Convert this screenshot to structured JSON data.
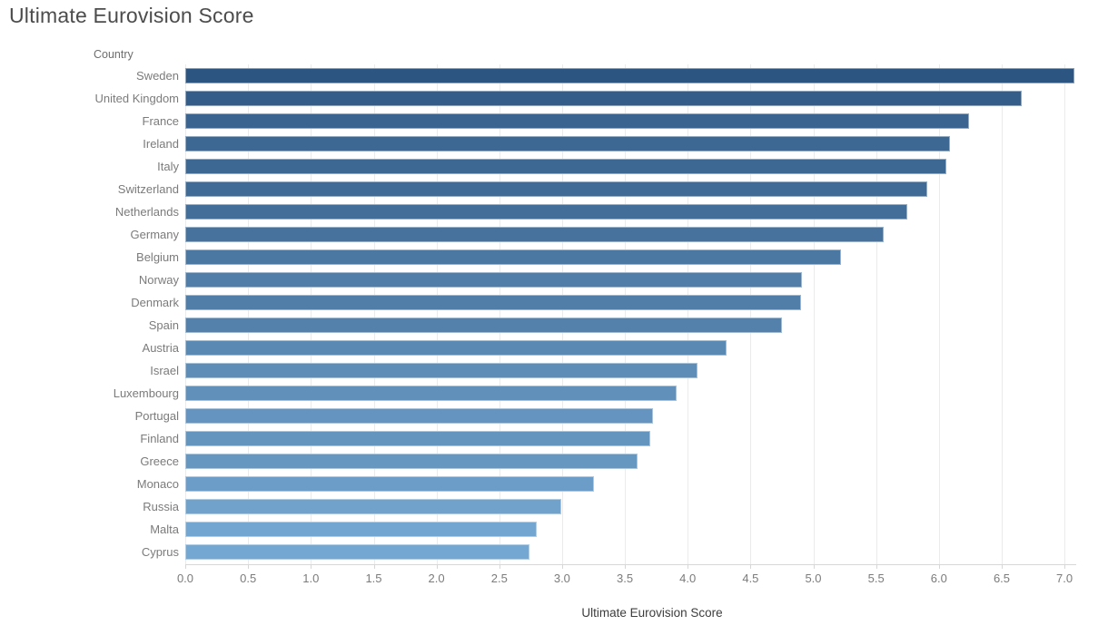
{
  "title": "Ultimate Eurovision Score",
  "row_header": "Country",
  "chart_data": {
    "type": "bar",
    "orientation": "horizontal",
    "title": "Ultimate Eurovision Score",
    "xlabel": "Ultimate Eurovision Score",
    "ylabel": "Country",
    "xlim": [
      0,
      7.0
    ],
    "tick_step": 0.5,
    "x_ticks": [
      "0.0",
      "0.5",
      "1.0",
      "1.5",
      "2.0",
      "2.5",
      "3.0",
      "3.5",
      "4.0",
      "4.5",
      "5.0",
      "5.5",
      "6.0",
      "6.5",
      "7.0"
    ],
    "grid": true,
    "legend": "none",
    "categories": [
      "Sweden",
      "United Kingdom",
      "France",
      "Ireland",
      "Italy",
      "Switzerland",
      "Netherlands",
      "Germany",
      "Belgium",
      "Norway",
      "Denmark",
      "Spain",
      "Austria",
      "Israel",
      "Luxembourg",
      "Portugal",
      "Finland",
      "Greece",
      "Monaco",
      "Russia",
      "Malta",
      "Cyprus"
    ],
    "values": [
      7.08,
      6.66,
      6.24,
      6.09,
      6.06,
      5.91,
      5.75,
      5.56,
      5.22,
      4.91,
      4.9,
      4.75,
      4.31,
      4.08,
      3.91,
      3.72,
      3.7,
      3.6,
      3.25,
      2.99,
      2.8,
      2.74
    ],
    "color_scale": {
      "type": "sequential-by-value",
      "min_value": 2.74,
      "max_value": 7.08,
      "min_color": "#74a7d1",
      "max_color": "#2d5581"
    }
  },
  "colors": {
    "title_text": "#4c4c4c",
    "label_text": "#7b7b7b",
    "gridline": "#ebebeb",
    "axis_line": "#d7d7d7",
    "background": "#ffffff"
  }
}
